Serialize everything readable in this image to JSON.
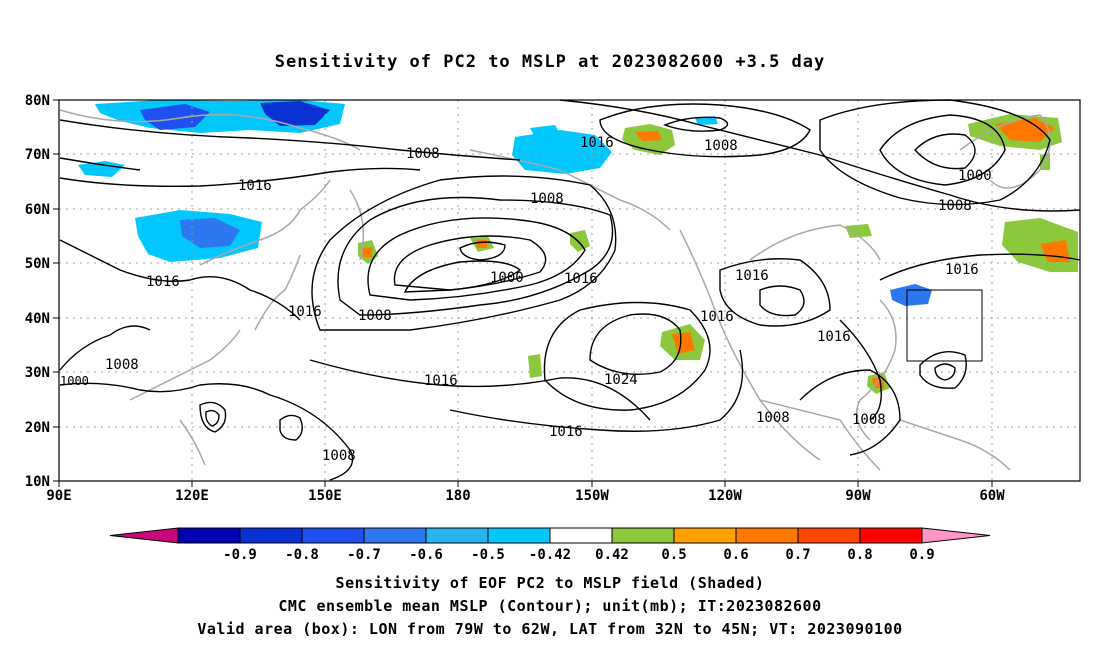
{
  "title": "Sensitivity of PC2 to MSLP at 2023082600 +3.5 day",
  "lat_labels": [
    "80N",
    "70N",
    "60N",
    "50N",
    "40N",
    "30N",
    "20N",
    "10N"
  ],
  "lon_labels": [
    "90E",
    "120E",
    "150E",
    "180",
    "150W",
    "120W",
    "90W",
    "60W"
  ],
  "contour_labels": [
    "1008",
    "1016",
    "1000",
    "1008",
    "1016",
    "1008",
    "1000",
    "1016",
    "1008",
    "1016",
    "1016",
    "1016",
    "1016",
    "1008",
    "1008",
    "1016",
    "1016",
    "1024",
    "1008",
    "1016",
    "1008",
    "1008",
    "1000",
    "1016"
  ],
  "colorbar": {
    "labels": [
      "-0.9",
      "-0.8",
      "-0.7",
      "-0.6",
      "-0.5",
      "-0.42",
      "0.42",
      "0.5",
      "0.6",
      "0.7",
      "0.8",
      "0.9"
    ],
    "colors": [
      "#c8087a",
      "#0000b4",
      "#0a32d2",
      "#1e50f0",
      "#2d78f0",
      "#28b4f0",
      "#00c8ff",
      "#ffffff",
      "#8cc83c",
      "#ffa000",
      "#ff7800",
      "#ff4600",
      "#ff0000",
      "#ff96c8"
    ]
  },
  "captions": {
    "line1": "Sensitivity of EOF PC2 to MSLP field (Shaded)",
    "line2": "CMC ensemble mean MSLP (Contour); unit(mb); IT:2023082600",
    "line3": "Valid area (box): LON from 79W to 62W, LAT from 32N to 45N; VT: 2023090100"
  }
}
